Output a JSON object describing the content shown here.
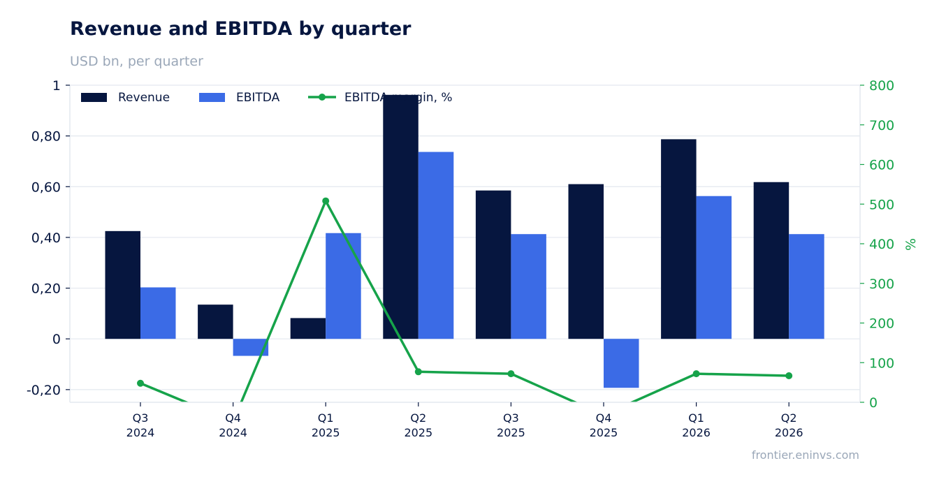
{
  "chart_data": {
    "type": "bar",
    "title": "Revenue and EBITDA by quarter",
    "subtitle": "USD bn, per quarter",
    "categories": [
      [
        "Q3",
        "2024"
      ],
      [
        "Q4",
        "2024"
      ],
      [
        "Q1",
        "2025"
      ],
      [
        "Q2",
        "2025"
      ],
      [
        "Q3",
        "2025"
      ],
      [
        "Q4",
        "2025"
      ],
      [
        "Q1",
        "2026"
      ],
      [
        "Q2",
        "2026"
      ]
    ],
    "series": [
      {
        "name": "Revenue",
        "type": "bar",
        "axis": "left",
        "color": "#06163f",
        "values": [
          0.425,
          0.135,
          0.082,
          0.962,
          0.585,
          0.61,
          0.787,
          0.618
        ]
      },
      {
        "name": "EBITDA",
        "type": "bar",
        "axis": "left",
        "color": "#3b6be6",
        "values": [
          0.203,
          -0.067,
          0.417,
          0.737,
          0.413,
          -0.193,
          0.563,
          0.413
        ]
      },
      {
        "name": "EBITDA margin, %",
        "type": "line",
        "axis": "right",
        "color": "#16a34a",
        "values": [
          48,
          -49,
          508,
          77,
          72,
          -32,
          72,
          67
        ]
      }
    ],
    "y_left": {
      "ylim": [
        -0.25,
        1.0
      ],
      "ticks": [
        -0.2,
        0,
        0.2,
        0.4,
        0.6,
        0.8,
        1.0
      ],
      "tick_labels": [
        "-0,20",
        "0",
        "0,20",
        "0,40",
        "0,60",
        "0,80",
        "1"
      ]
    },
    "y_right": {
      "label": "%",
      "ylim": [
        0,
        800
      ],
      "ticks": [
        0,
        100,
        200,
        300,
        400,
        500,
        600,
        700,
        800
      ],
      "tick_labels": [
        "0",
        "100",
        "200",
        "300",
        "400",
        "500",
        "600",
        "700",
        "800"
      ]
    },
    "grid": true,
    "legend_position": "top-left",
    "source": "frontier.eninvs.com"
  }
}
